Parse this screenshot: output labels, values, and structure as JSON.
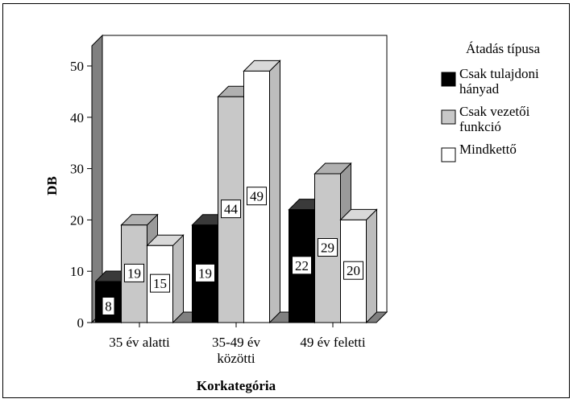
{
  "chart_data": {
    "type": "bar",
    "title": "",
    "xlabel": "Korkategória",
    "ylabel": "DB",
    "ylim": [
      0,
      50
    ],
    "yticks": [
      0,
      10,
      20,
      30,
      40,
      50
    ],
    "grid": false,
    "categories": [
      [
        "35 év alatti"
      ],
      [
        "35-49 év",
        "közötti"
      ],
      [
        "49 év feletti"
      ]
    ],
    "legend": {
      "title": "Átadás típusa",
      "placement": "right"
    },
    "series": [
      {
        "name_lines": [
          "Csak tulajdoni",
          "hányad"
        ],
        "values": [
          8,
          19,
          22
        ],
        "color": "#000000",
        "side": "#1a1a1a",
        "top": "#3a3a3a",
        "label_bg": "#ffffff"
      },
      {
        "name_lines": [
          "Csak vezetői",
          "funkció"
        ],
        "values": [
          19,
          44,
          29
        ],
        "color": "#c8c8c8",
        "side": "#9a9a9a",
        "top": "#b0b0b0",
        "label_bg": "#ffffff"
      },
      {
        "name_lines": [
          "Mindkettő"
        ],
        "values": [
          15,
          49,
          20
        ],
        "color": "#ffffff",
        "side": "#bdbdbd",
        "top": "#d9d9d9",
        "label_bg": "#ffffff"
      }
    ],
    "wall_color": "#ffffff",
    "wall_side_color": "#808080",
    "floor_color": "#808080"
  }
}
